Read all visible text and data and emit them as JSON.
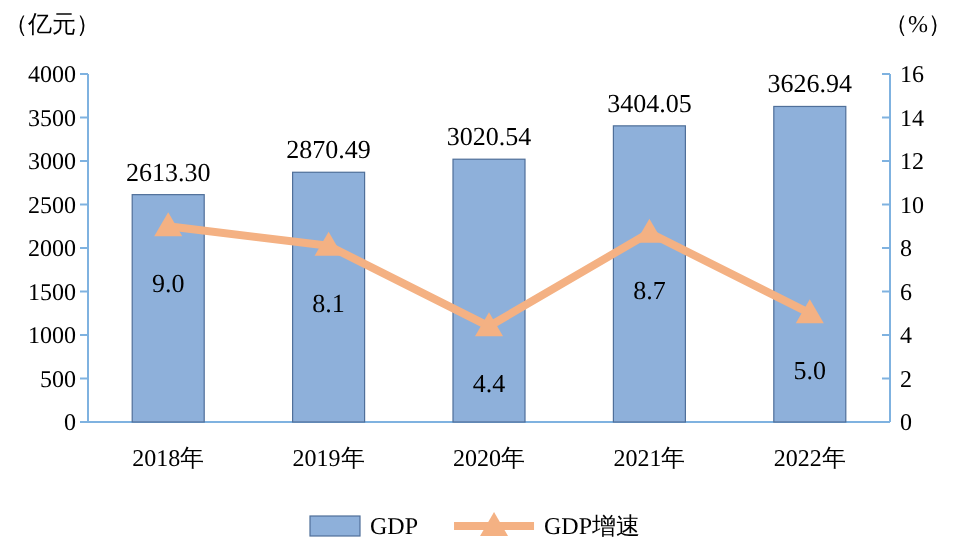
{
  "chart_data": {
    "type": "bar",
    "categories": [
      "2018年",
      "2019年",
      "2020年",
      "2021年",
      "2022年"
    ],
    "ylabel": "（亿元）",
    "y2label": "（%）",
    "ylim": [
      0,
      4000
    ],
    "yticks": [
      0,
      500,
      1000,
      1500,
      2000,
      2500,
      3000,
      3500,
      4000
    ],
    "y2lim": [
      0,
      16
    ],
    "y2ticks": [
      0,
      2,
      4,
      6,
      8,
      10,
      12,
      14,
      16
    ],
    "series": [
      {
        "name": "GDP",
        "color": "#8eb0da",
        "values": [
          2613.3,
          2870.49,
          3020.54,
          3404.05,
          3626.94
        ],
        "value_labels": [
          "2613.30",
          "2870.49",
          "3020.54",
          "3404.05",
          "3626.94"
        ]
      },
      {
        "name": "GDP增速",
        "type": "line",
        "axis": "y2",
        "color": "#f4b183",
        "marker": "triangle",
        "values": [
          9.0,
          8.1,
          4.4,
          8.7,
          5.0
        ],
        "value_labels": [
          "9.0",
          "8.1",
          "4.4",
          "8.7",
          "5.0"
        ]
      }
    ],
    "legend": "bottom",
    "grid": false
  }
}
